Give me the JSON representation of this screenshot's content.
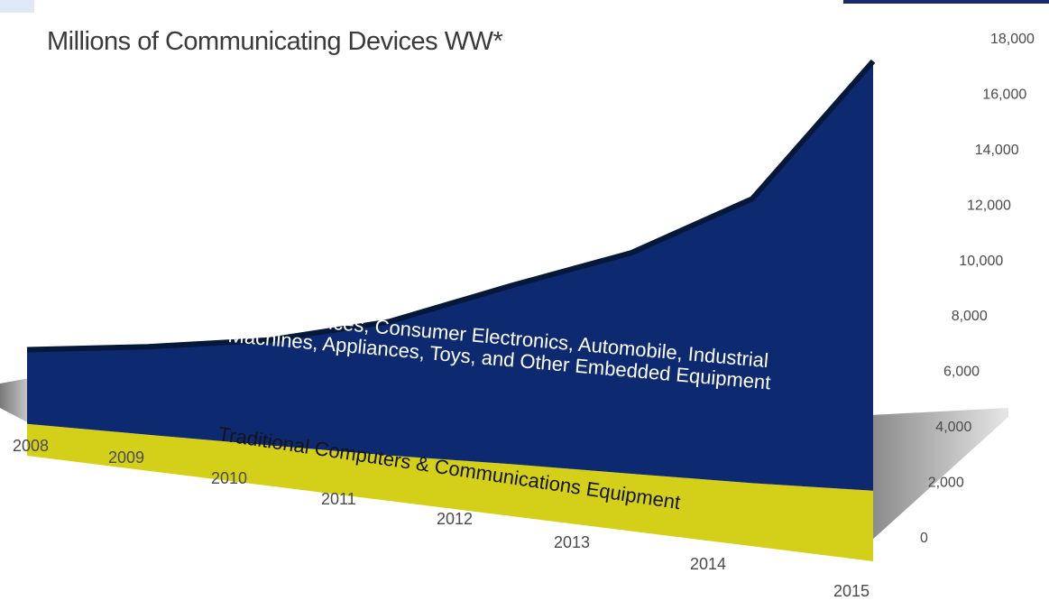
{
  "chart_data": {
    "type": "area",
    "title": "Millions of Communicating Devices WW*",
    "x": [
      "2008",
      "2009",
      "2010",
      "2011",
      "2012",
      "2013",
      "2014",
      "2015"
    ],
    "series": [
      {
        "name": "Traditional Computers & Communications Equipment",
        "values": [
          1500,
          1600,
          1700,
          1800,
          1950,
          2050,
          2150,
          2300
        ],
        "color": "#d4d01a"
      },
      {
        "name": "Mobile Devices, Consumer Electronics, Automobile, Industrial Machines, Appliances, Toys, and Other Embedded Equipment",
        "values": [
          3500,
          3900,
          4400,
          5300,
          6700,
          7900,
          9700,
          14000
        ],
        "color": "#0d2a70"
      }
    ],
    "stacked": true,
    "yticks": [
      "0",
      "2,000",
      "4,000",
      "6,000",
      "8,000",
      "10,000",
      "12,000",
      "14,000",
      "16,000",
      "18,000"
    ],
    "ylim": [
      0,
      18000
    ],
    "grid": false,
    "legend": "none"
  },
  "colors": {
    "mobile": "#0d2a70",
    "traditional": "#d4d01a",
    "shadow": "#9a9a9a"
  }
}
